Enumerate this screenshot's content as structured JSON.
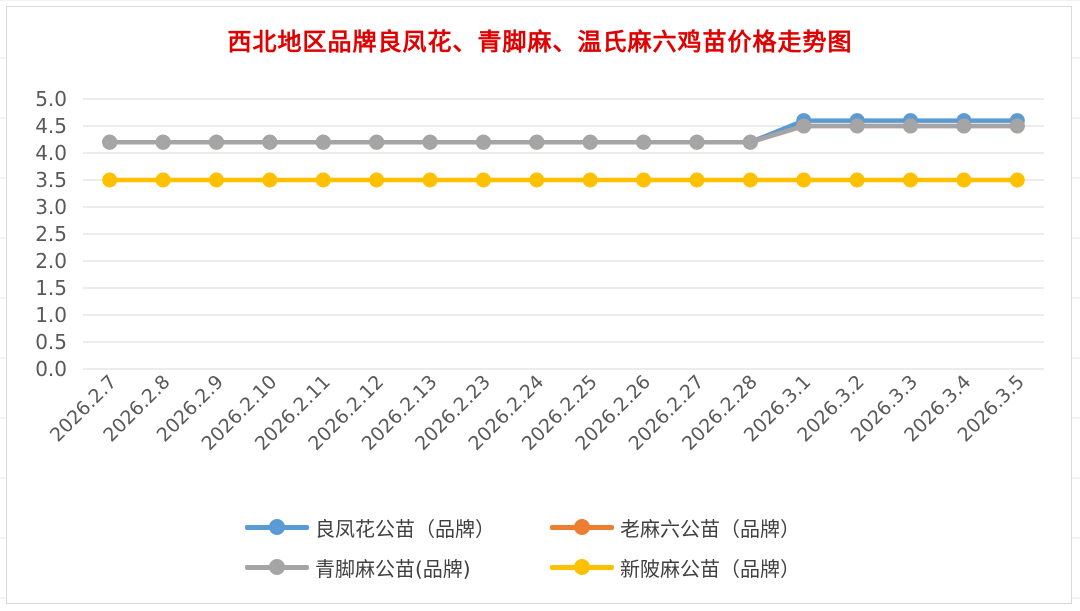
{
  "chart_data": {
    "type": "line",
    "title": "西北地区品牌良凤花、青脚麻、温氏麻六鸡苗价格走势图",
    "xlabel": "",
    "ylabel": "",
    "ylim": [
      0,
      5
    ],
    "ytick_step": 0.5,
    "grid": true,
    "legend_position": "bottom",
    "categories": [
      "2026.2.7",
      "2026.2.8",
      "2026.2.9",
      "2026.2.10",
      "2026.2.11",
      "2026.2.12",
      "2026.2.13",
      "2026.2.23",
      "2026.2.24",
      "2026.2.25",
      "2026.2.26",
      "2026.2.27",
      "2026.2.28",
      "2026.3.1",
      "2026.3.2",
      "2026.3.3",
      "2026.3.4",
      "2026.3.5"
    ],
    "series": [
      {
        "name": "良凤花公苗（品牌）",
        "color": "#5b9bd5",
        "values": [
          4.2,
          4.2,
          4.2,
          4.2,
          4.2,
          4.2,
          4.2,
          4.2,
          4.2,
          4.2,
          4.2,
          4.2,
          4.2,
          4.6,
          4.6,
          4.6,
          4.6,
          4.6
        ]
      },
      {
        "name": "老麻六公苗（品牌）",
        "color": "#ed7d31",
        "values": [
          4.2,
          4.2,
          4.2,
          4.2,
          4.2,
          4.2,
          4.2,
          4.2,
          4.2,
          4.2,
          4.2,
          4.2,
          4.2,
          4.5,
          4.5,
          4.5,
          4.5,
          4.5
        ]
      },
      {
        "name": "青脚麻公苗(品牌)",
        "color": "#a5a5a5",
        "values": [
          4.2,
          4.2,
          4.2,
          4.2,
          4.2,
          4.2,
          4.2,
          4.2,
          4.2,
          4.2,
          4.2,
          4.2,
          4.2,
          4.5,
          4.5,
          4.5,
          4.5,
          4.5
        ]
      },
      {
        "name": "新陂麻公苗（品牌）",
        "color": "#ffc000",
        "values": [
          3.5,
          3.5,
          3.5,
          3.5,
          3.5,
          3.5,
          3.5,
          3.5,
          3.5,
          3.5,
          3.5,
          3.5,
          3.5,
          3.5,
          3.5,
          3.5,
          3.5,
          3.5
        ]
      }
    ]
  }
}
